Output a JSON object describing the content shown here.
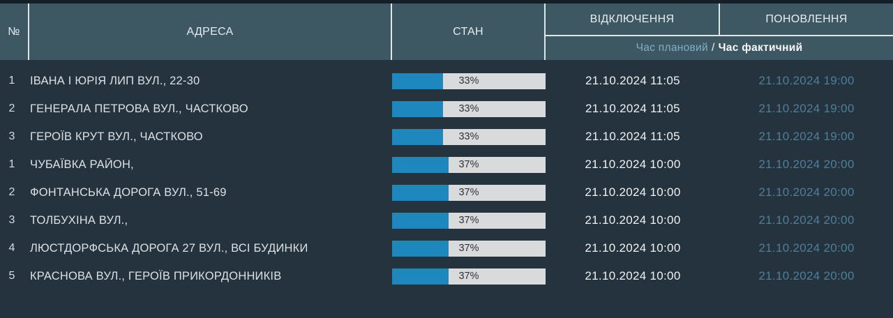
{
  "header": {
    "col_number": "№",
    "col_address": "АДРЕСА",
    "col_state": "СТАН",
    "col_off": "ВІДКЛЮЧЕННЯ",
    "col_on": "ПОНОВЛЕННЯ",
    "sub_planned": "Час плановий",
    "sub_separator": "/",
    "sub_actual": "Час фактичний"
  },
  "colors": {
    "header_background": "#3d5863",
    "body_background": "#25333e",
    "top_strip": "#141f27",
    "divider": "#dfe7ea",
    "progress_fill": "#1e87bd",
    "progress_track": "#d8dadc",
    "planned_time_text": "#7fb0c9",
    "actual_time_text": "#4e7f9b",
    "off_time_text": "#eef2f4"
  },
  "rows": [
    {
      "num": "1",
      "address": "ІВАНА І ЮРІЯ ЛИП ВУЛ., 22-30",
      "percent": 33,
      "percent_label": "33%",
      "off_time": "21.10.2024 11:05",
      "on_time": "21.10.2024 19:00"
    },
    {
      "num": "2",
      "address": "ГЕНЕРАЛА ПЕТРОВА ВУЛ., ЧАСТКОВО",
      "percent": 33,
      "percent_label": "33%",
      "off_time": "21.10.2024 11:05",
      "on_time": "21.10.2024 19:00"
    },
    {
      "num": "3",
      "address": "ГЕРОЇВ КРУТ ВУЛ., ЧАСТКОВО",
      "percent": 33,
      "percent_label": "33%",
      "off_time": "21.10.2024 11:05",
      "on_time": "21.10.2024 19:00"
    },
    {
      "num": "1",
      "address": "ЧУБАЇВКА РАЙОН,",
      "percent": 37,
      "percent_label": "37%",
      "off_time": "21.10.2024 10:00",
      "on_time": "21.10.2024 20:00"
    },
    {
      "num": "2",
      "address": "ФОНТАНСЬКА ДОРОГА ВУЛ., 51-69",
      "percent": 37,
      "percent_label": "37%",
      "off_time": "21.10.2024 10:00",
      "on_time": "21.10.2024 20:00"
    },
    {
      "num": "3",
      "address": "ТОЛБУХІНА ВУЛ.,",
      "percent": 37,
      "percent_label": "37%",
      "off_time": "21.10.2024 10:00",
      "on_time": "21.10.2024 20:00"
    },
    {
      "num": "4",
      "address": "ЛЮСТДОРФСЬКА ДОРОГА 27 ВУЛ., ВСІ БУДИНКИ",
      "percent": 37,
      "percent_label": "37%",
      "off_time": "21.10.2024 10:00",
      "on_time": "21.10.2024 20:00"
    },
    {
      "num": "5",
      "address": "КРАСНОВА ВУЛ., ГЕРОЇВ ПРИКОРДОННИКІВ",
      "percent": 37,
      "percent_label": "37%",
      "off_time": "21.10.2024 10:00",
      "on_time": "21.10.2024 20:00"
    }
  ]
}
